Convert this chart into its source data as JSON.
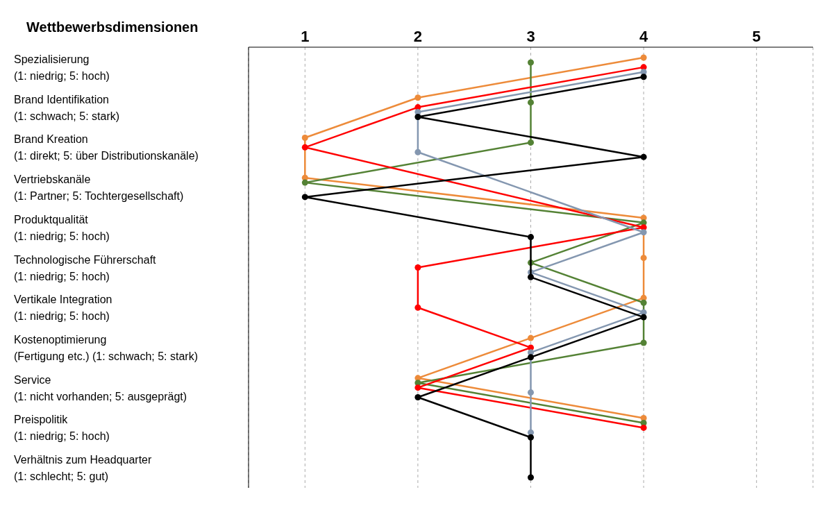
{
  "chart_data": {
    "type": "line",
    "orientation": "horizontal",
    "ylabel": "Wettbewerbsdimensionen",
    "categories": [
      "Spezialisierung (1: niedrig; 5: hoch)",
      "Brand Identifikation (1: schwach; 5: stark)",
      "Brand Kreation (1: direkt; 5: über Distributionskanäle)",
      "Vertriebskanäle (1: Partner; 5: Tochtergesellschaft)",
      "Produktqualität (1: niedrig; 5: hoch)",
      "Technologische Führerschaft (1: niedrig; 5: hoch)",
      "Vertikale Integration (1: niedrig; 5: hoch)",
      "Kostenoptimierung (Fertigung etc.) (1: schwach; 5: stark)",
      "Service (1: nicht vorhanden; 5: ausgeprägt)",
      "Preispolitik (1: niedrig; 5: hoch)",
      "Verhältnis zum Headquarter (1: schlecht; 5: gut)"
    ],
    "series": [
      {
        "color": "#ed8b3a",
        "values": [
          4,
          2,
          1,
          1,
          4,
          4,
          4,
          3,
          2,
          4,
          null
        ]
      },
      {
        "color": "#548235",
        "values": [
          3,
          3,
          3,
          1,
          4,
          3,
          4,
          4,
          2,
          4,
          null
        ]
      },
      {
        "color": "#ff0000",
        "values": [
          4,
          2,
          1,
          null,
          4,
          2,
          2,
          3,
          2,
          4,
          null
        ]
      },
      {
        "color": "#8497b0",
        "values": [
          4,
          2,
          2,
          null,
          4,
          3,
          4,
          3,
          3,
          3,
          null
        ]
      },
      {
        "color": "#000000",
        "values": [
          4,
          2,
          4,
          1,
          3,
          3,
          4,
          3,
          2,
          3,
          3
        ]
      }
    ],
    "xlim": [
      0.5,
      5.5
    ],
    "xticks": [
      1,
      2,
      3,
      4,
      5
    ],
    "grid": "x",
    "marker": "circle",
    "line_style": "solid"
  }
}
